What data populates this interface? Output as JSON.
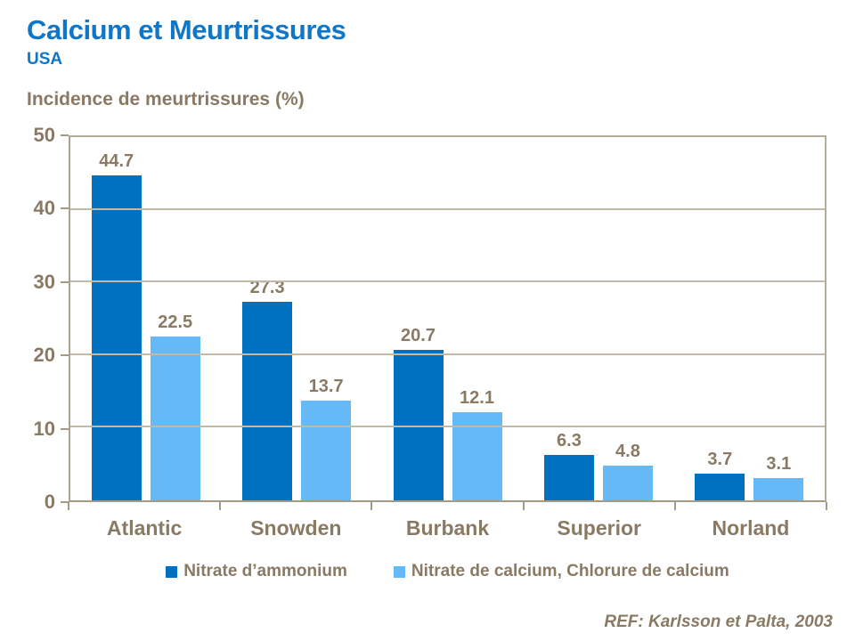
{
  "header": {
    "title": "Calcium et Meurtrissures",
    "subtitle": "USA"
  },
  "axis_title": "Incidence de meurtrissures (%)",
  "footer": {
    "reference": "REF: Karlsson et Palta, 2003"
  },
  "colors": {
    "title_blue": "#1076c8",
    "text_brown": "#8a7963",
    "series1": "#0070c0",
    "series2": "#66b9f7",
    "gridline": "#c2b9a9",
    "axis_line": "#a39a88"
  },
  "chart_data": {
    "type": "bar",
    "title": "Calcium et Meurtrissures — USA",
    "ylabel": "Incidence de meurtrissures (%)",
    "categories": [
      "Atlantic",
      "Snowden",
      "Burbank",
      "Superior",
      "Norland"
    ],
    "series": [
      {
        "name": "Nitrate d’ammonium",
        "color_key": "series1",
        "values": [
          44.7,
          27.3,
          20.7,
          6.3,
          3.7
        ]
      },
      {
        "name": "Nitrate de calcium, Chlorure de calcium",
        "color_key": "series2",
        "values": [
          22.5,
          13.7,
          12.1,
          4.8,
          3.1
        ]
      }
    ],
    "ylim": [
      0,
      50
    ],
    "yticks": [
      0,
      10,
      20,
      30,
      40,
      50
    ],
    "grid": true,
    "legend_position": "bottom",
    "annotation": "REF: Karlsson et Palta, 2003"
  }
}
